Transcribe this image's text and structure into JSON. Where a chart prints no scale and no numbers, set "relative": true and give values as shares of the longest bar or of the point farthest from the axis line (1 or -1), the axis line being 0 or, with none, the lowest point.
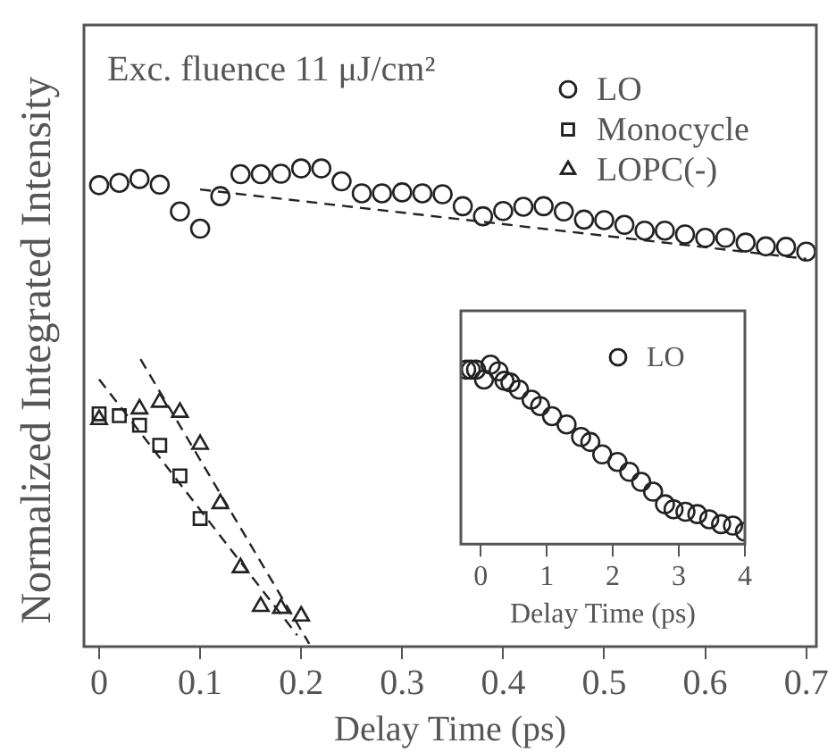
{
  "chart_data": [
    {
      "type": "scatter",
      "annotations": [
        "Exc. fluence 11 μJ/cm²"
      ],
      "xlabel": "Delay Time (ps)",
      "ylabel": "Normalized Integrated Intensity",
      "relative": true,
      "xlim": [
        -0.015,
        0.71
      ],
      "xticks": [
        0,
        0.1,
        0.2,
        0.3,
        0.4,
        0.5,
        0.6,
        0.7
      ],
      "legend": "top right",
      "grid": false,
      "series": [
        {
          "name": "LO",
          "marker": "circle",
          "color": "#222222",
          "x": [
            0,
            0.02,
            0.04,
            0.06,
            0.08,
            0.1,
            0.12,
            0.14,
            0.16,
            0.18,
            0.2,
            0.22,
            0.24,
            0.26,
            0.28,
            0.3,
            0.32,
            0.34,
            0.36,
            0.38,
            0.4,
            0.42,
            0.44,
            0.46,
            0.48,
            0.5,
            0.52,
            0.54,
            0.56,
            0.58,
            0.6,
            0.62,
            0.64,
            0.66,
            0.68,
            0.7
          ],
          "values": [
            0.965,
            0.97,
            0.978,
            0.966,
            0.91,
            0.874,
            0.942,
            0.988,
            0.988,
            0.989,
            1,
            1,
            0.973,
            0.948,
            0.948,
            0.95,
            0.948,
            0.946,
            0.921,
            0.9,
            0.911,
            0.92,
            0.921,
            0.91,
            0.893,
            0.892,
            0.882,
            0.87,
            0.87,
            0.862,
            0.855,
            0.855,
            0.845,
            0.837,
            0.836,
            0.826
          ]
        },
        {
          "name": "Monocycle",
          "marker": "square",
          "color": "#222222",
          "x": [
            0,
            0.02,
            0.04,
            0.06,
            0.08,
            0.1
          ],
          "values": [
            0.487,
            0.483,
            0.463,
            0.421,
            0.357,
            0.268
          ]
        },
        {
          "name": "LOPC(-)",
          "marker": "triangle",
          "color": "#222222",
          "x": [
            0,
            0.04,
            0.06,
            0.08,
            0.1,
            0.12,
            0.14,
            0.16,
            0.18,
            0.2
          ],
          "values": [
            0.475,
            0.497,
            0.511,
            0.49,
            0.423,
            0.299,
            0.165,
            0.084,
            0.08,
            0.064
          ]
        },
        {
          "type": "line",
          "marker": "none",
          "line_style": "dashed",
          "color": "#222222",
          "x": [
            0.1,
            0.7
          ],
          "values": [
            0.956,
            0.811
          ]
        },
        {
          "type": "line",
          "marker": "none",
          "line_style": "dashed",
          "color": "#222222",
          "x": [
            0,
            0.196
          ],
          "values": [
            0.559,
            0.024
          ]
        },
        {
          "type": "line",
          "marker": "none",
          "line_style": "dashed",
          "color": "#222222",
          "x": [
            0.041,
            0.208
          ],
          "values": [
            0.601,
            0.006
          ]
        }
      ]
    },
    {
      "type": "scatter",
      "xlabel": "Delay Time (ps)",
      "relative": true,
      "xlim": [
        -0.3,
        4.0
      ],
      "xticks": [
        0,
        1,
        2,
        3,
        4
      ],
      "legend": "top right",
      "grid": false,
      "series": [
        {
          "name": "LO",
          "marker": "circle",
          "color": "#222222",
          "x": [
            -0.22,
            -0.15,
            -0.07,
            0.05,
            0.15,
            0.27,
            0.36,
            0.45,
            0.58,
            0.77,
            0.9,
            1.08,
            1.3,
            1.52,
            1.66,
            1.84,
            2.07,
            2.25,
            2.43,
            2.61,
            2.79,
            2.92,
            3.1,
            3.28,
            3.46,
            3.64,
            3.82,
            4.0
          ],
          "values": [
            0.972,
            0.972,
            0.972,
            0.917,
            1.0,
            0.963,
            0.91,
            0.9,
            0.861,
            0.805,
            0.769,
            0.713,
            0.667,
            0.597,
            0.569,
            0.5,
            0.458,
            0.403,
            0.347,
            0.292,
            0.222,
            0.194,
            0.18,
            0.167,
            0.138,
            0.111,
            0.103,
            0.069
          ]
        }
      ]
    }
  ]
}
